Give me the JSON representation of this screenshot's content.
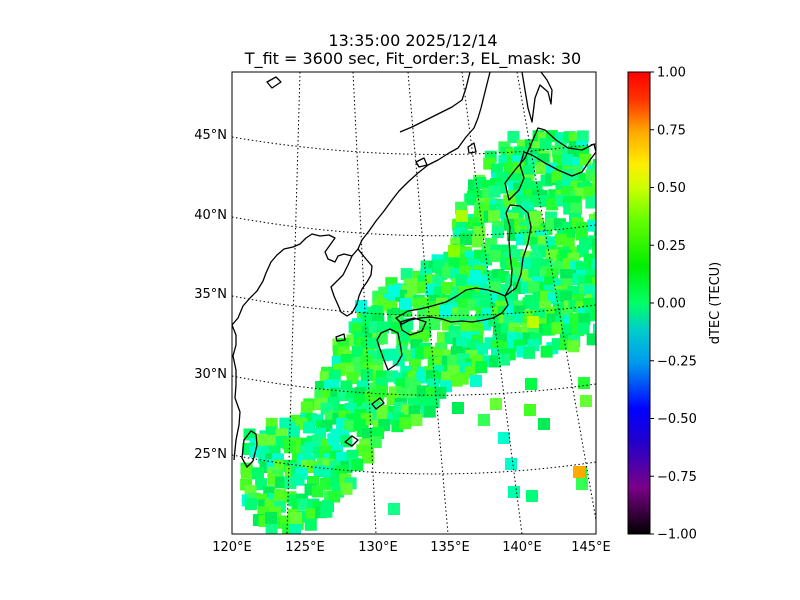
{
  "title": {
    "line1": "13:35:00 2025/12/14",
    "line2": "T_fit = 3600 sec, Fit_order:3, EL_mask: 30"
  },
  "map": {
    "lat_labels": [
      "45°N",
      "40°N",
      "35°N",
      "30°N",
      "25°N"
    ],
    "lon_labels": [
      "120°E",
      "125°E",
      "130°E",
      "135°E",
      "140°E",
      "145°E"
    ],
    "extent": {
      "lon": [
        120,
        145
      ],
      "lat": [
        20,
        49
      ]
    },
    "grid": "dotted graticule"
  },
  "colorbar": {
    "label": "dTEC (TECU)",
    "ticks": [
      "1.00",
      "0.75",
      "0.50",
      "0.25",
      "0.00",
      "−0.25",
      "−0.50",
      "−0.75",
      "−1.00"
    ],
    "range": [
      -1.0,
      1.0
    ],
    "colormap": "nipy_spectral",
    "colors": [
      "#000000",
      "#8800aa",
      "#0000ff",
      "#00aaff",
      "#00ffff",
      "#00ff00",
      "#88ff00",
      "#ffff00",
      "#ff8800",
      "#ff0000"
    ]
  },
  "chart_data": {
    "type": "heatmap",
    "variable": "dTEC (TECU)",
    "value_range": [
      -1.0,
      1.0
    ],
    "typical_value": 0.05,
    "notable_cells": [
      {
        "lon": 144.2,
        "lat": 24.2,
        "value": 0.6
      },
      {
        "lon": 140.5,
        "lat": 33.8,
        "value": 0.55
      },
      {
        "lon": 135.3,
        "lat": 37.0,
        "value": 0.45
      }
    ]
  }
}
